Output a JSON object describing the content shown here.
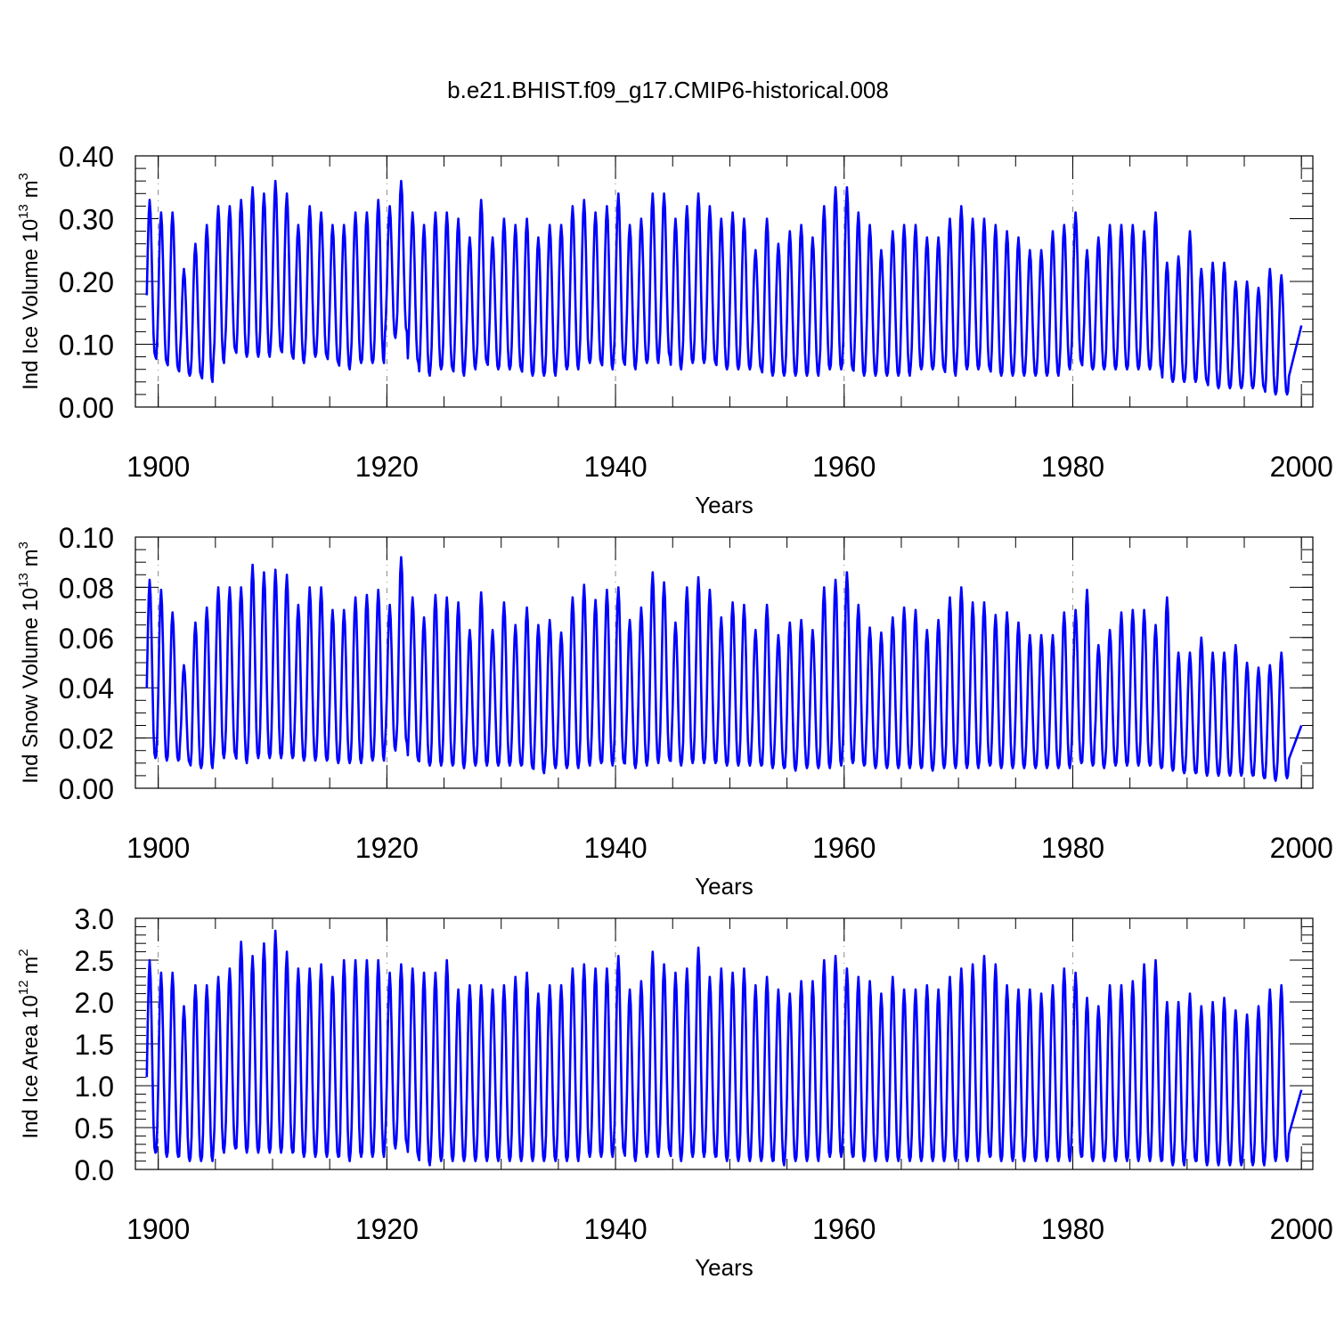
{
  "chart_data": {
    "type": "line",
    "title": "b.e21.BHIST.f09_g17.CMIP6-historical.008",
    "colors": {
      "line": "#0000ff",
      "frame": "#000000",
      "grid": "#888888"
    },
    "x": {
      "start": 1899.0,
      "end": 2000.0,
      "step_per_month": 0.08333
    },
    "panels": [
      {
        "name": "ice-volume",
        "ylabel": "Ind Ice Volume 10",
        "ylabel_exp": "13",
        "ylabel_unit": " m",
        "ylabel_unit_exp": "3",
        "xlabel": "Years",
        "xlim": [
          1898,
          2001
        ],
        "ylim": [
          0.0,
          0.4
        ],
        "major_y": [
          0.0,
          0.1,
          0.2,
          0.3,
          0.4
        ],
        "major_y_labels": [
          "0.00",
          "0.10",
          "0.20",
          "0.30",
          "0.40"
        ],
        "minor_y_step": 0.02,
        "major_x": [
          1900,
          1920,
          1940,
          1960,
          1980,
          2000
        ],
        "major_x_labels": [
          "1900",
          "1920",
          "1940",
          "1960",
          "1980",
          "2000"
        ],
        "minor_x_step": 5,
        "grid_x": [
          1900,
          1920,
          1940,
          1960,
          1980
        ],
        "series": {
          "name": "Ind Ice Volume",
          "annual_max": [
            0.33,
            0.31,
            0.31,
            0.22,
            0.26,
            0.29,
            0.32,
            0.32,
            0.33,
            0.35,
            0.34,
            0.36,
            0.34,
            0.29,
            0.32,
            0.31,
            0.29,
            0.29,
            0.31,
            0.31,
            0.33,
            0.32,
            0.36,
            0.31,
            0.29,
            0.31,
            0.31,
            0.3,
            0.27,
            0.33,
            0.27,
            0.3,
            0.29,
            0.3,
            0.27,
            0.29,
            0.29,
            0.32,
            0.33,
            0.31,
            0.32,
            0.34,
            0.29,
            0.3,
            0.34,
            0.34,
            0.3,
            0.32,
            0.34,
            0.32,
            0.3,
            0.31,
            0.3,
            0.25,
            0.3,
            0.26,
            0.28,
            0.29,
            0.27,
            0.32,
            0.35,
            0.35,
            0.31,
            0.29,
            0.25,
            0.28,
            0.29,
            0.29,
            0.27,
            0.27,
            0.3,
            0.32,
            0.3,
            0.3,
            0.29,
            0.28,
            0.27,
            0.25,
            0.25,
            0.28,
            0.29,
            0.31,
            0.25,
            0.27,
            0.29,
            0.29,
            0.29,
            0.28,
            0.31,
            0.23,
            0.24,
            0.28,
            0.22,
            0.23,
            0.23,
            0.2,
            0.2,
            0.19,
            0.22,
            0.21
          ],
          "annual_min": [
            0.08,
            0.07,
            0.06,
            0.05,
            0.05,
            0.04,
            0.07,
            0.09,
            0.08,
            0.08,
            0.08,
            0.09,
            0.08,
            0.07,
            0.08,
            0.08,
            0.07,
            0.06,
            0.07,
            0.07,
            0.07,
            0.11,
            0.12,
            0.07,
            0.05,
            0.06,
            0.06,
            0.05,
            0.06,
            0.07,
            0.06,
            0.06,
            0.06,
            0.05,
            0.05,
            0.05,
            0.06,
            0.06,
            0.07,
            0.07,
            0.06,
            0.07,
            0.06,
            0.07,
            0.07,
            0.08,
            0.06,
            0.07,
            0.07,
            0.07,
            0.06,
            0.06,
            0.06,
            0.06,
            0.05,
            0.05,
            0.05,
            0.05,
            0.05,
            0.06,
            0.06,
            0.06,
            0.05,
            0.05,
            0.05,
            0.05,
            0.05,
            0.06,
            0.06,
            0.06,
            0.05,
            0.06,
            0.06,
            0.06,
            0.05,
            0.05,
            0.05,
            0.05,
            0.05,
            0.05,
            0.06,
            0.07,
            0.06,
            0.06,
            0.06,
            0.06,
            0.06,
            0.06,
            0.06,
            0.04,
            0.04,
            0.04,
            0.04,
            0.03,
            0.03,
            0.03,
            0.03,
            0.03,
            0.02,
            0.02
          ],
          "end_value": 0.13
        }
      },
      {
        "name": "snow-volume",
        "ylabel": "Ind Snow Volume 10",
        "ylabel_exp": "13",
        "ylabel_unit": " m",
        "ylabel_unit_exp": "3",
        "xlabel": "Years",
        "xlim": [
          1898,
          2001
        ],
        "ylim": [
          0.0,
          0.1
        ],
        "major_y": [
          0.0,
          0.02,
          0.04,
          0.06,
          0.08,
          0.1
        ],
        "major_y_labels": [
          "0.00",
          "0.02",
          "0.04",
          "0.06",
          "0.08",
          "0.10"
        ],
        "minor_y_step": 0.005,
        "major_x": [
          1900,
          1920,
          1940,
          1960,
          1980,
          2000
        ],
        "major_x_labels": [
          "1900",
          "1920",
          "1940",
          "1960",
          "1980",
          "2000"
        ],
        "minor_x_step": 5,
        "grid_x": [
          1900,
          1920,
          1940,
          1960,
          1980
        ],
        "series": {
          "name": "Ind Snow Volume",
          "annual_max": [
            0.083,
            0.079,
            0.07,
            0.049,
            0.066,
            0.072,
            0.08,
            0.08,
            0.08,
            0.089,
            0.086,
            0.087,
            0.085,
            0.073,
            0.08,
            0.08,
            0.071,
            0.071,
            0.076,
            0.077,
            0.079,
            0.073,
            0.092,
            0.076,
            0.068,
            0.077,
            0.076,
            0.074,
            0.063,
            0.078,
            0.063,
            0.074,
            0.065,
            0.072,
            0.065,
            0.067,
            0.062,
            0.076,
            0.081,
            0.075,
            0.079,
            0.08,
            0.067,
            0.072,
            0.086,
            0.082,
            0.066,
            0.08,
            0.084,
            0.079,
            0.068,
            0.074,
            0.073,
            0.063,
            0.073,
            0.061,
            0.066,
            0.067,
            0.063,
            0.08,
            0.083,
            0.086,
            0.073,
            0.064,
            0.062,
            0.068,
            0.072,
            0.071,
            0.063,
            0.067,
            0.076,
            0.08,
            0.074,
            0.074,
            0.069,
            0.07,
            0.066,
            0.061,
            0.061,
            0.061,
            0.07,
            0.071,
            0.079,
            0.057,
            0.063,
            0.07,
            0.071,
            0.071,
            0.065,
            0.076,
            0.054,
            0.054,
            0.06,
            0.054,
            0.054,
            0.057,
            0.05,
            0.048,
            0.049,
            0.054
          ],
          "annual_min": [
            0.012,
            0.011,
            0.011,
            0.01,
            0.008,
            0.008,
            0.012,
            0.013,
            0.01,
            0.012,
            0.012,
            0.012,
            0.012,
            0.011,
            0.011,
            0.011,
            0.01,
            0.01,
            0.01,
            0.011,
            0.011,
            0.015,
            0.018,
            0.011,
            0.009,
            0.009,
            0.009,
            0.008,
            0.009,
            0.009,
            0.009,
            0.009,
            0.009,
            0.008,
            0.006,
            0.008,
            0.008,
            0.008,
            0.009,
            0.01,
            0.009,
            0.01,
            0.008,
            0.009,
            0.01,
            0.011,
            0.009,
            0.01,
            0.01,
            0.01,
            0.009,
            0.009,
            0.009,
            0.009,
            0.008,
            0.008,
            0.007,
            0.008,
            0.008,
            0.008,
            0.009,
            0.01,
            0.009,
            0.008,
            0.008,
            0.008,
            0.008,
            0.008,
            0.007,
            0.008,
            0.008,
            0.008,
            0.008,
            0.009,
            0.008,
            0.008,
            0.008,
            0.008,
            0.008,
            0.008,
            0.008,
            0.01,
            0.009,
            0.008,
            0.009,
            0.009,
            0.009,
            0.009,
            0.008,
            0.007,
            0.006,
            0.006,
            0.005,
            0.005,
            0.005,
            0.005,
            0.005,
            0.004,
            0.003,
            0.004
          ],
          "end_value": 0.025
        }
      },
      {
        "name": "ice-area",
        "ylabel": "Ind Ice Area 10",
        "ylabel_exp": "12",
        "ylabel_unit": " m",
        "ylabel_unit_exp": "2",
        "xlabel": "Years",
        "xlim": [
          1898,
          2001
        ],
        "ylim": [
          0.0,
          3.0
        ],
        "major_y": [
          0.0,
          0.5,
          1.0,
          1.5,
          2.0,
          2.5,
          3.0
        ],
        "major_y_labels": [
          "0.0",
          "0.5",
          "1.0",
          "1.5",
          "2.0",
          "2.5",
          "3.0"
        ],
        "minor_y_step": 0.1,
        "major_x": [
          1900,
          1920,
          1940,
          1960,
          1980,
          2000
        ],
        "major_x_labels": [
          "1900",
          "1920",
          "1940",
          "1960",
          "1980",
          "2000"
        ],
        "minor_x_step": 5,
        "grid_x": [
          1900,
          1920,
          1940,
          1960,
          1980
        ],
        "series": {
          "name": "Ind Ice Area",
          "annual_max": [
            2.5,
            2.35,
            2.35,
            1.95,
            2.2,
            2.2,
            2.3,
            2.4,
            2.72,
            2.55,
            2.7,
            2.85,
            2.6,
            2.4,
            2.4,
            2.45,
            2.3,
            2.5,
            2.5,
            2.5,
            2.5,
            2.35,
            2.45,
            2.4,
            2.35,
            2.35,
            2.5,
            2.15,
            2.2,
            2.2,
            2.15,
            2.2,
            2.3,
            2.35,
            2.1,
            2.2,
            2.2,
            2.4,
            2.45,
            2.4,
            2.4,
            2.55,
            2.15,
            2.25,
            2.6,
            2.45,
            2.35,
            2.4,
            2.65,
            2.3,
            2.4,
            2.35,
            2.4,
            2.2,
            2.3,
            2.15,
            2.1,
            2.25,
            2.25,
            2.5,
            2.55,
            2.4,
            2.3,
            2.25,
            2.1,
            2.3,
            2.15,
            2.15,
            2.2,
            2.15,
            2.3,
            2.4,
            2.45,
            2.55,
            2.45,
            2.2,
            2.15,
            2.15,
            2.1,
            2.2,
            2.4,
            2.35,
            2.05,
            1.95,
            2.2,
            2.2,
            2.25,
            2.45,
            2.5,
            2.0,
            2.0,
            2.1,
            1.95,
            2.0,
            2.05,
            1.9,
            1.85,
            1.95,
            2.15,
            2.2
          ],
          "annual_min": [
            0.2,
            0.15,
            0.15,
            0.1,
            0.1,
            0.1,
            0.2,
            0.25,
            0.2,
            0.2,
            0.2,
            0.2,
            0.2,
            0.15,
            0.15,
            0.15,
            0.15,
            0.1,
            0.15,
            0.15,
            0.15,
            0.25,
            0.3,
            0.15,
            0.05,
            0.1,
            0.1,
            0.1,
            0.1,
            0.1,
            0.1,
            0.1,
            0.1,
            0.1,
            0.1,
            0.1,
            0.1,
            0.1,
            0.15,
            0.15,
            0.15,
            0.2,
            0.1,
            0.15,
            0.15,
            0.2,
            0.1,
            0.15,
            0.15,
            0.15,
            0.1,
            0.1,
            0.1,
            0.1,
            0.1,
            0.05,
            0.1,
            0.1,
            0.1,
            0.15,
            0.15,
            0.15,
            0.1,
            0.1,
            0.1,
            0.1,
            0.1,
            0.1,
            0.1,
            0.1,
            0.1,
            0.1,
            0.1,
            0.15,
            0.1,
            0.1,
            0.1,
            0.1,
            0.1,
            0.1,
            0.1,
            0.15,
            0.1,
            0.1,
            0.1,
            0.1,
            0.1,
            0.1,
            0.1,
            0.05,
            0.05,
            0.1,
            0.05,
            0.05,
            0.05,
            0.05,
            0.05,
            0.05,
            0.1,
            0.1
          ],
          "end_value": 0.95
        }
      }
    ]
  }
}
